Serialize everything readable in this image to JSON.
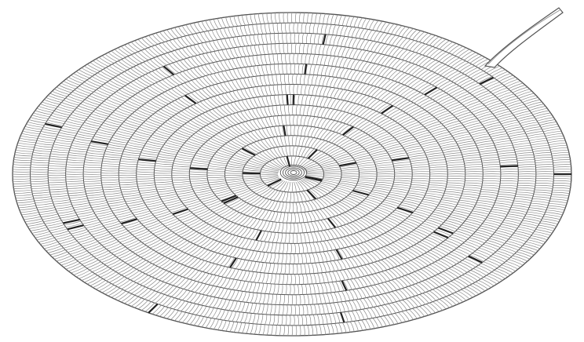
{
  "image": {
    "subject": "coiled-rope-mat-line-art",
    "palette": {
      "background": "#ffffff",
      "stroke": "#555555",
      "stroke_light": "#8a8a8a",
      "accent_marks": "#222222"
    },
    "coil_turns": 15
  }
}
